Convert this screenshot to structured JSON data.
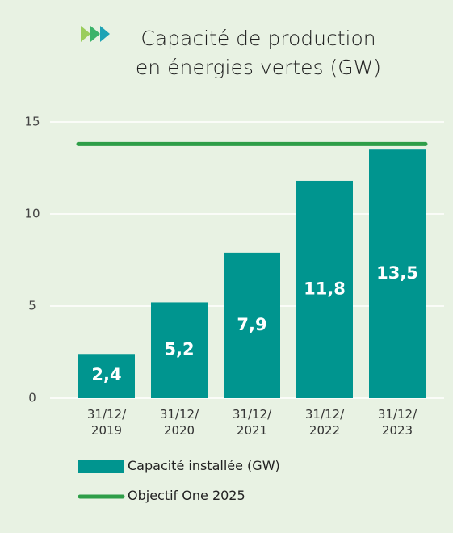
{
  "chart_data": {
    "type": "bar",
    "title": "Capacité de production\nen énergies vertes (GW)",
    "categories": [
      "31/12/\n2019",
      "31/12/\n2020",
      "31/12/\n2021",
      "31/12/\n2022",
      "31/12/\n2023"
    ],
    "series": [
      {
        "name": "Capacité installée (GW)",
        "color": "#00958f",
        "values": [
          2.4,
          5.2,
          7.9,
          11.8,
          13.5
        ],
        "value_labels": [
          "2,4",
          "5,2",
          "7,9",
          "11,8",
          "13,5"
        ]
      },
      {
        "name": "Objectif One 2025",
        "color": "#2e9e48",
        "type": "line",
        "values": [
          13.8,
          13.8,
          13.8,
          13.8,
          13.8
        ]
      }
    ],
    "ylim": [
      0,
      15
    ],
    "yticks": [
      0,
      5,
      10,
      15
    ],
    "grid": true
  }
}
